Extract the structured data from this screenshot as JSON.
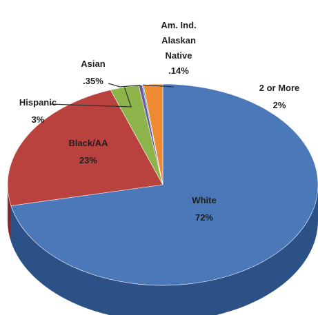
{
  "chart_data": {
    "type": "pie",
    "title": "",
    "series": [
      {
        "values": [
          72,
          23,
          3,
          0.35,
          0.14,
          2
        ],
        "categories": [
          "White",
          "Black/AA",
          "Hispanic",
          "Asian",
          "Am. Ind. Alaskan Native",
          "2 or More"
        ]
      }
    ],
    "labels": [
      {
        "lines": [
          "White",
          "72%"
        ]
      },
      {
        "lines": [
          "Black/AA",
          "23%"
        ]
      },
      {
        "lines": [
          "Hispanic",
          "3%"
        ]
      },
      {
        "lines": [
          "Asian",
          ".35%"
        ]
      },
      {
        "lines": [
          "Am. Ind.",
          "Alaskan",
          "Native",
          ".14%"
        ]
      },
      {
        "lines": [
          "2 or More",
          "2%"
        ]
      }
    ],
    "colors": [
      "#4a78b8",
      "#b9413e",
      "#8db44b",
      "#70539a",
      "#4bacc6",
      "#ee8a32"
    ],
    "side_colors": [
      "#2c5187",
      "#7f2a28",
      "#5e8230",
      "#4a366a",
      "#2f7f93",
      "#b3631c"
    ],
    "three_d": true
  }
}
